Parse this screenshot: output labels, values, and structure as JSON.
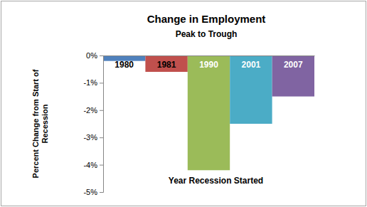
{
  "chart_data": {
    "type": "bar",
    "title": "Change in Employment",
    "subtitle": "Peak to Trough",
    "x_label": "Year Recession Started",
    "y_label": "Percent Change from Start of Recession",
    "categories": [
      "1980",
      "1981",
      "1990",
      "2001",
      "2007"
    ],
    "values": [
      -0.2,
      -0.6,
      -4.2,
      -2.5,
      -1.5
    ],
    "colors": [
      "#4f81bd",
      "#c0504d",
      "#9bbb59",
      "#4bacc6",
      "#8064a2"
    ],
    "ylim": [
      -5,
      0
    ],
    "yticks": [
      {
        "value": -5,
        "label": "-5%"
      },
      {
        "value": -4,
        "label": "-4%"
      },
      {
        "value": -3,
        "label": "-3%"
      },
      {
        "value": -2,
        "label": "-2%"
      },
      {
        "value": -1,
        "label": "-1%"
      },
      {
        "value": 0,
        "label": "0%"
      }
    ],
    "grid": false,
    "tick_labels": "y"
  }
}
